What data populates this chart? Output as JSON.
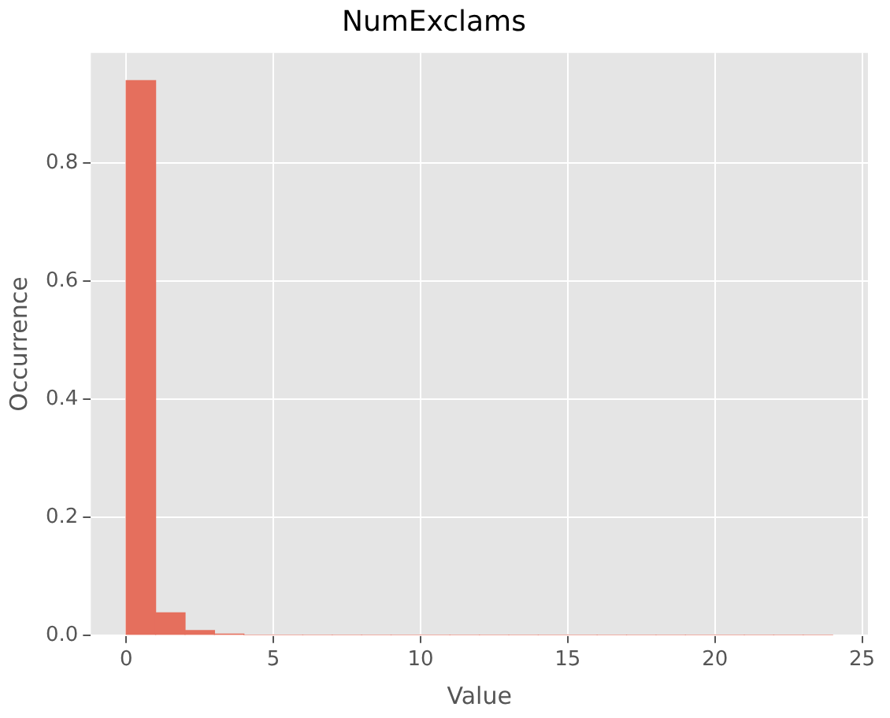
{
  "chart_data": {
    "type": "histogram",
    "title": "NumExclams",
    "xlabel": "Value",
    "ylabel": "Occurrence",
    "bins": [
      0,
      1,
      2,
      3,
      4,
      5,
      6,
      7,
      8,
      9,
      10,
      11,
      12,
      13,
      14,
      15,
      16,
      17,
      18,
      19,
      20,
      21,
      22,
      23,
      24
    ],
    "values": [
      0.94,
      0.038,
      0.008,
      0.002,
      0,
      0,
      0,
      0,
      0,
      0,
      0,
      0,
      0,
      0,
      0,
      0,
      0,
      0,
      0,
      0,
      0,
      0,
      0,
      0
    ],
    "color": "#e56f5d",
    "xlim": [
      -1.2,
      25.2
    ],
    "xticks": [
      0,
      5,
      10,
      15,
      20,
      25
    ],
    "ylim": [
      0,
      0.987
    ],
    "yticks": [
      {
        "value": 0,
        "label": "0.0"
      },
      {
        "value": 0.2,
        "label": "0.2"
      },
      {
        "value": 0.4,
        "label": "0.4"
      },
      {
        "value": 0.6,
        "label": "0.6"
      },
      {
        "value": 0.8,
        "label": "0.8"
      }
    ],
    "grid": true,
    "legend": false
  }
}
